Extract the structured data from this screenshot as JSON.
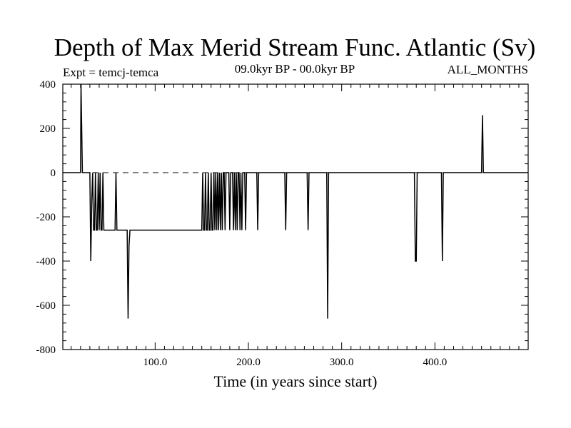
{
  "chart_data": {
    "type": "line",
    "title": "Depth of Max Merid Stream Func. Atlantic (Sv)",
    "subtitle_left": "Expt = temcj-temca",
    "subtitle_center": "09.0kyr BP - 00.0kyr BP",
    "subtitle_right": "ALL_MONTHS",
    "xlabel": "Time (in years since start)",
    "ylabel": "",
    "xlim": [
      1,
      500
    ],
    "ylim": [
      -800,
      400
    ],
    "xticks": [
      100,
      200,
      300,
      400
    ],
    "xtick_labels": [
      "100.0",
      "200.0",
      "300.0",
      "400.0"
    ],
    "yticks": [
      -800,
      -600,
      -400,
      -200,
      0,
      200,
      400
    ],
    "ytick_labels": [
      "-800",
      "-600",
      "-400",
      "-200",
      "0",
      "200",
      "400"
    ],
    "zero_line": "dashed",
    "grid": false,
    "series": [
      {
        "x": [
          1,
          20,
          20.5,
          21,
          22,
          23,
          30,
          31,
          32,
          33,
          34,
          35,
          36,
          37,
          38,
          39,
          40,
          41,
          42,
          43,
          44,
          45,
          46,
          47,
          48,
          57,
          58,
          59,
          60,
          69,
          70,
          71,
          72,
          73,
          150,
          151,
          152,
          153,
          154,
          155,
          156,
          157,
          158,
          159,
          160,
          161,
          162,
          163,
          164,
          165,
          166,
          167,
          168,
          169,
          170,
          171,
          172,
          173,
          174,
          175,
          176,
          177,
          178,
          179,
          180,
          181,
          182,
          183,
          184,
          185,
          186,
          187,
          188,
          189,
          190,
          191,
          192,
          193,
          194,
          195,
          196,
          197,
          198,
          199,
          208,
          209,
          210,
          211,
          238,
          239,
          240,
          241,
          262,
          263,
          264,
          265,
          283,
          284,
          285,
          286,
          377,
          378,
          379,
          380,
          381,
          406,
          407,
          408,
          409,
          449,
          450,
          451,
          452,
          500
        ],
        "y": [
          0,
          0,
          400,
          270,
          0,
          0,
          0,
          -400,
          -130,
          0,
          -260,
          -260,
          0,
          -260,
          -260,
          0,
          -260,
          0,
          -260,
          -260,
          0,
          -260,
          -260,
          -260,
          -260,
          -260,
          0,
          -260,
          -260,
          -260,
          -260,
          -660,
          -330,
          -260,
          -260,
          0,
          -260,
          -260,
          0,
          -260,
          -260,
          0,
          -260,
          -260,
          0,
          -260,
          -260,
          0,
          -260,
          0,
          -260,
          0,
          -260,
          0,
          -260,
          0,
          -260,
          0,
          0,
          -260,
          0,
          0,
          0,
          0,
          -260,
          0,
          0,
          0,
          -260,
          0,
          -260,
          0,
          -260,
          0,
          0,
          -260,
          0,
          -260,
          0,
          0,
          0,
          -260,
          0,
          0,
          0,
          0,
          -260,
          0,
          0,
          0,
          -260,
          0,
          0,
          0,
          -260,
          0,
          0,
          0,
          -660,
          0,
          0,
          0,
          -400,
          -400,
          0,
          0,
          0,
          -400,
          0,
          0,
          0,
          260,
          0,
          0
        ]
      }
    ]
  }
}
